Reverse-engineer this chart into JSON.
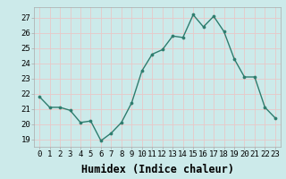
{
  "x": [
    0,
    1,
    2,
    3,
    4,
    5,
    6,
    7,
    8,
    9,
    10,
    11,
    12,
    13,
    14,
    15,
    16,
    17,
    18,
    19,
    20,
    21,
    22,
    23
  ],
  "y": [
    21.8,
    21.1,
    21.1,
    20.9,
    20.1,
    20.2,
    18.9,
    19.4,
    20.1,
    21.4,
    23.5,
    24.6,
    24.9,
    25.8,
    25.7,
    27.2,
    26.4,
    27.1,
    26.1,
    24.3,
    23.1,
    23.1,
    21.1,
    20.4
  ],
  "xlabel": "Humidex (Indice chaleur)",
  "ylim": [
    18.5,
    27.7
  ],
  "yticks": [
    19,
    20,
    21,
    22,
    23,
    24,
    25,
    26,
    27
  ],
  "xticks": [
    0,
    1,
    2,
    3,
    4,
    5,
    6,
    7,
    8,
    9,
    10,
    11,
    12,
    13,
    14,
    15,
    16,
    17,
    18,
    19,
    20,
    21,
    22,
    23
  ],
  "line_color": "#2e7d6e",
  "marker_color": "#2e7d6e",
  "bg_color": "#cceaea",
  "grid_color": "#e8c8c8",
  "spine_color": "#aaaaaa",
  "tick_label_fontsize": 6.5,
  "xlabel_fontsize": 8.5
}
